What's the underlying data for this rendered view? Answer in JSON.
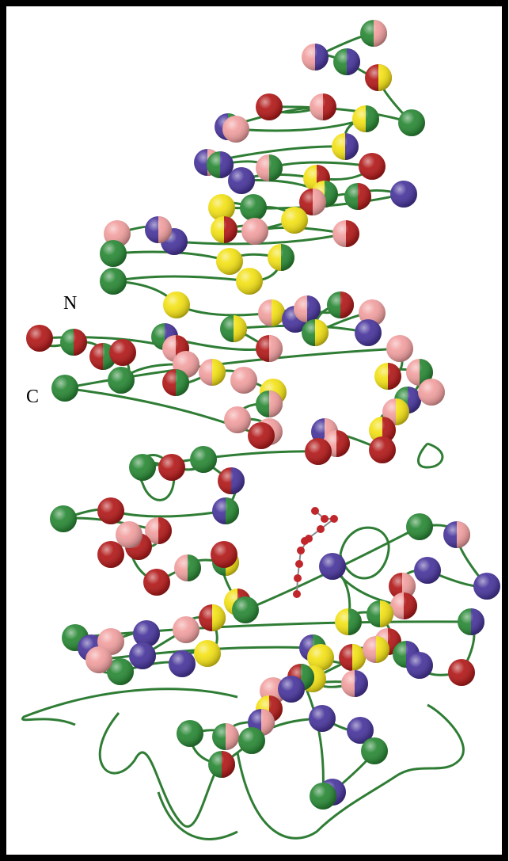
{
  "labels": {
    "n_terminus": "N",
    "c_terminus": "C"
  }
}
